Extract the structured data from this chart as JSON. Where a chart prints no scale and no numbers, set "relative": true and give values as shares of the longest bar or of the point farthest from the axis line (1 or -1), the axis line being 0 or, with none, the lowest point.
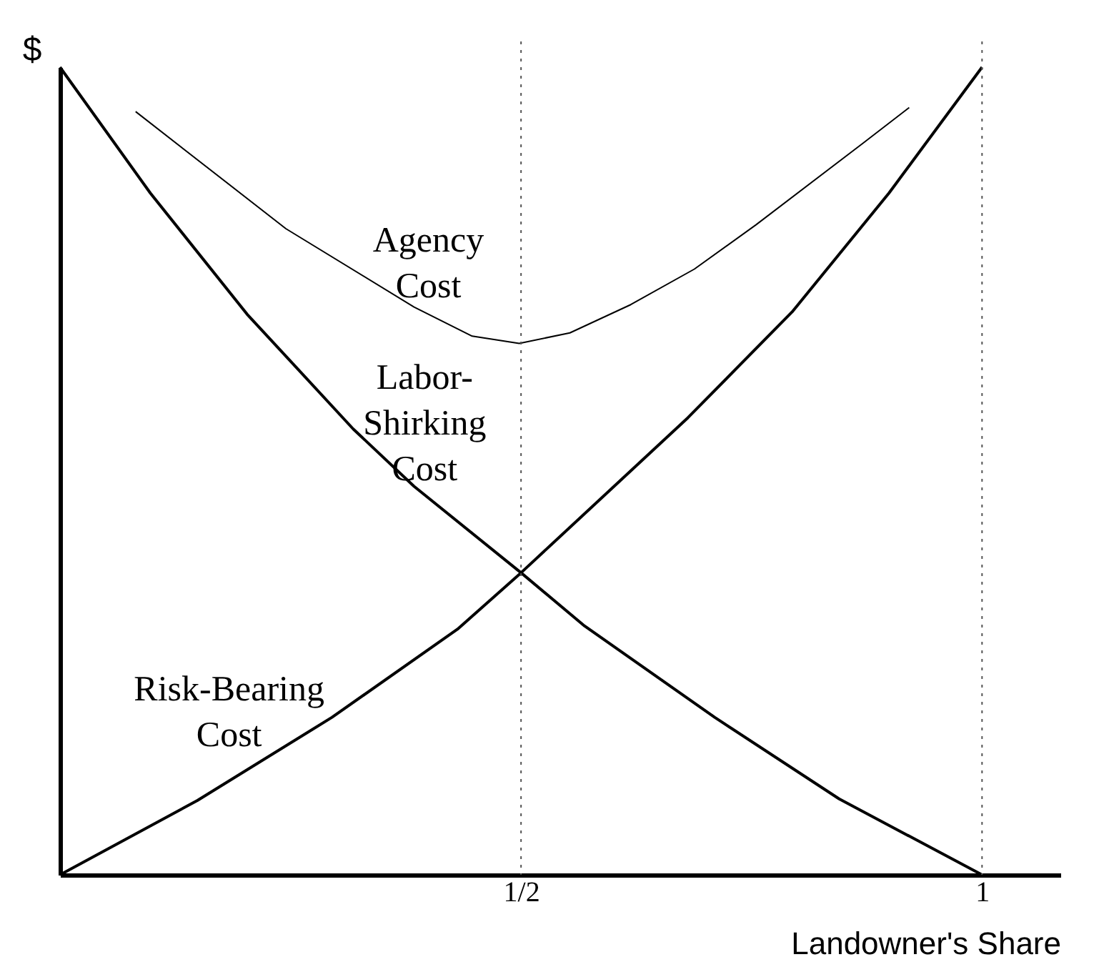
{
  "chart_data": {
    "type": "line",
    "relative": true,
    "ylabel": "$",
    "xlabel": "Landowner's Share",
    "xlim": [
      0,
      1.085
    ],
    "xticks": [
      {
        "value": 0.5,
        "label": "1/2"
      },
      1
    ],
    "line_style": "solid",
    "marker": "none",
    "ref_lines": [
      {
        "axis": "x",
        "value": 0.5,
        "color": "#555555",
        "line_style": "dotted"
      },
      {
        "axis": "x",
        "value": 1,
        "color": "#555555",
        "line_style": "dotted"
      }
    ],
    "series": [
      {
        "name": "Agency\nCost",
        "color": "#000000",
        "x": [
          0.082,
          0.245,
          0.384,
          0.447,
          0.498,
          0.553,
          0.619,
          0.688,
          0.755,
          0.871,
          0.921
        ],
        "values": [
          0.945,
          0.8,
          0.703,
          0.667,
          0.658,
          0.671,
          0.706,
          0.75,
          0.805,
          0.906,
          0.95
        ]
      },
      {
        "name": "Labor-\nShirking\nCost",
        "color": "#000000",
        "x": [
          0,
          0.098,
          0.203,
          0.318,
          0.384,
          0.5,
          0.569,
          0.71,
          0.845,
          1
        ],
        "values": [
          1,
          0.844,
          0.694,
          0.552,
          0.481,
          0.374,
          0.308,
          0.195,
          0.094,
          0
        ]
      },
      {
        "name": "Risk-Bearing\nCost",
        "color": "#000000",
        "x": [
          0,
          0.149,
          0.295,
          0.431,
          0.5,
          0.681,
          0.794,
          0.899,
          1
        ],
        "values": [
          0,
          0.092,
          0.195,
          0.304,
          0.374,
          0.566,
          0.697,
          0.844,
          1
        ]
      }
    ]
  }
}
